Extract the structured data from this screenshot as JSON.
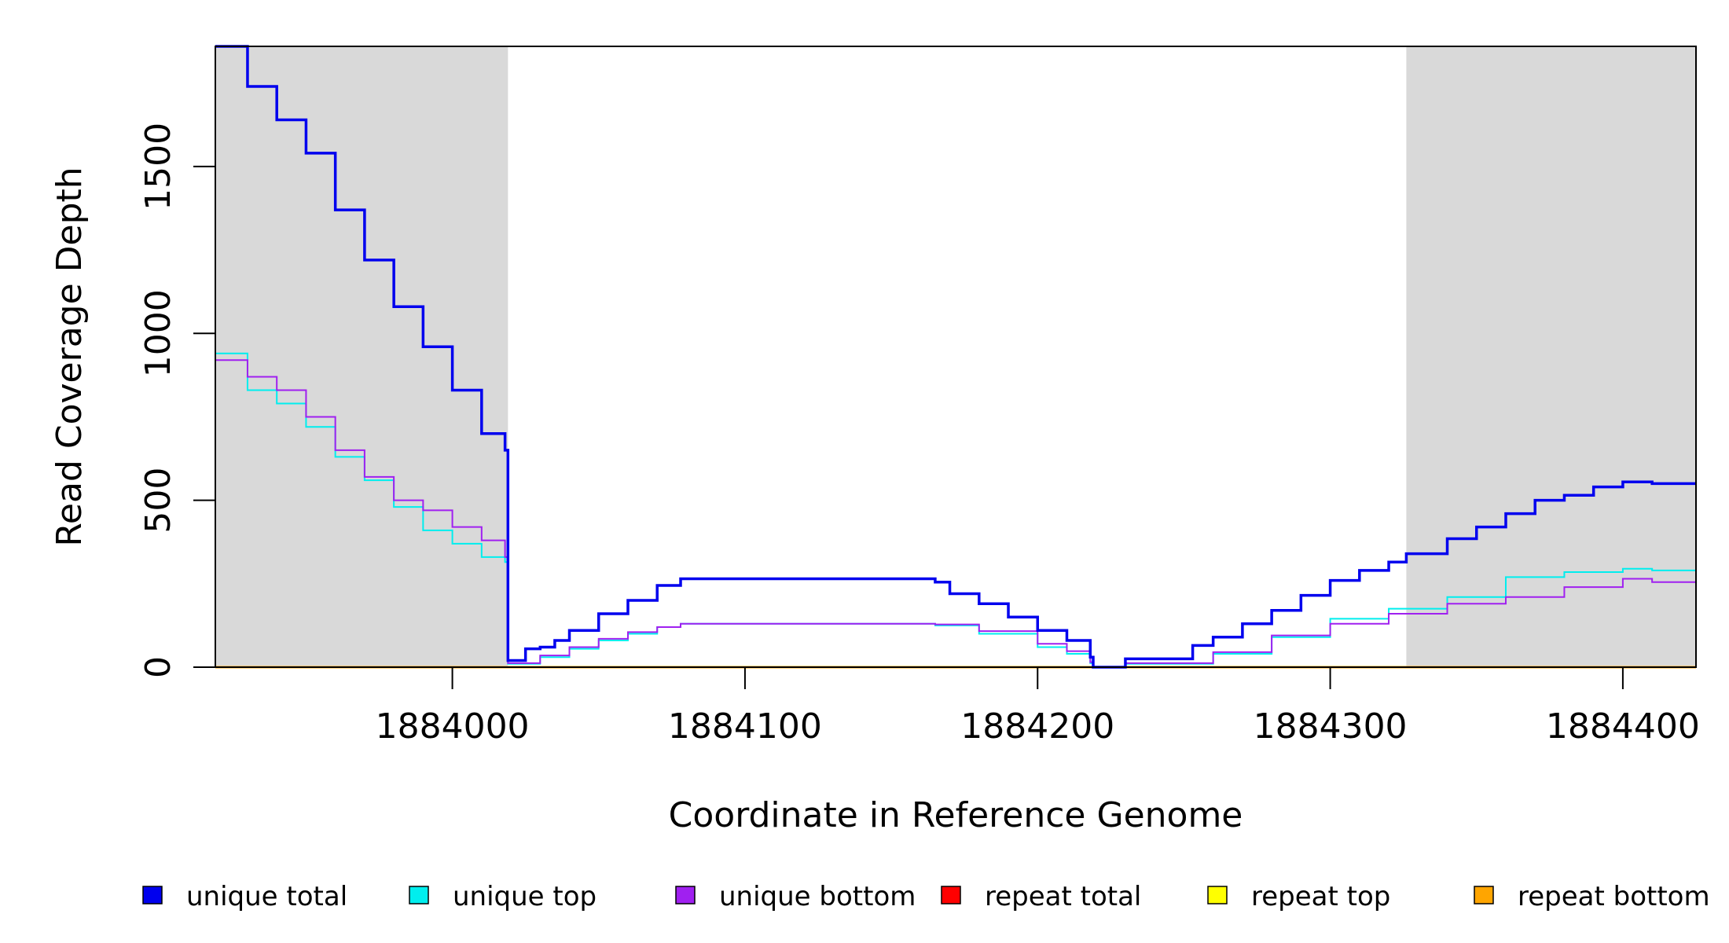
{
  "chart_data": {
    "type": "line",
    "xlabel": "Coordinate in Reference Genome",
    "ylabel": "Read Coverage Depth",
    "xlim": [
      1883919,
      1884425
    ],
    "ylim": [
      0,
      1860
    ],
    "xticks": [
      1884000,
      1884100,
      1884200,
      1884300,
      1884400
    ],
    "xtick_labels": [
      "1884000",
      "1884100",
      "1884200",
      "1884300",
      "1884400"
    ],
    "yticks": [
      0,
      500,
      1000,
      1500
    ],
    "ytick_labels": [
      "0",
      "500",
      "1000",
      "1500"
    ],
    "grid": false,
    "legend_position": "bottom",
    "shaded_regions": [
      {
        "x0": 1883919,
        "x1": 1884019,
        "color": "#d9d9d9"
      },
      {
        "x0": 1884326,
        "x1": 1884425,
        "color": "#d9d9d9"
      }
    ],
    "series": [
      {
        "name": "unique total",
        "color": "#0000ee",
        "x": [
          1883919,
          1883930,
          1883940,
          1883950,
          1883960,
          1883970,
          1883980,
          1883990,
          1884000,
          1884010,
          1884018,
          1884019,
          1884025,
          1884030,
          1884034,
          1884035,
          1884040,
          1884050,
          1884060,
          1884070,
          1884078,
          1884100,
          1884130,
          1884160,
          1884165,
          1884170,
          1884180,
          1884190,
          1884200,
          1884210,
          1884218,
          1884219,
          1884229,
          1884230,
          1884240,
          1884252,
          1884253,
          1884260,
          1884270,
          1884280,
          1884290,
          1884300,
          1884310,
          1884320,
          1884326,
          1884340,
          1884350,
          1884360,
          1884370,
          1884380,
          1884390,
          1884400,
          1884410,
          1884425
        ],
        "y": [
          1860,
          1740,
          1640,
          1540,
          1370,
          1220,
          1080,
          960,
          830,
          700,
          650,
          20,
          55,
          60,
          60,
          80,
          110,
          160,
          200,
          245,
          265,
          265,
          265,
          265,
          255,
          220,
          190,
          150,
          110,
          80,
          30,
          0,
          0,
          25,
          25,
          25,
          65,
          90,
          130,
          170,
          215,
          260,
          290,
          315,
          340,
          385,
          420,
          460,
          500,
          515,
          540,
          555,
          550,
          550
        ]
      },
      {
        "name": "unique top",
        "color": "#00eeee",
        "x": [
          1883919,
          1883930,
          1883940,
          1883950,
          1883960,
          1883970,
          1883980,
          1883990,
          1884000,
          1884010,
          1884018,
          1884019,
          1884030,
          1884040,
          1884050,
          1884060,
          1884070,
          1884078,
          1884100,
          1884160,
          1884165,
          1884180,
          1884200,
          1884210,
          1884218,
          1884219,
          1884229,
          1884230,
          1884252,
          1884260,
          1884280,
          1884300,
          1884320,
          1884340,
          1884360,
          1884380,
          1884400,
          1884410,
          1884425
        ],
        "y": [
          940,
          830,
          790,
          720,
          630,
          560,
          480,
          410,
          370,
          330,
          315,
          10,
          30,
          55,
          80,
          100,
          120,
          130,
          130,
          130,
          125,
          100,
          60,
          40,
          12,
          0,
          0,
          10,
          10,
          40,
          90,
          145,
          175,
          210,
          270,
          285,
          295,
          290,
          295
        ]
      },
      {
        "name": "unique bottom",
        "color": "#a020f0",
        "x": [
          1883919,
          1883930,
          1883940,
          1883950,
          1883960,
          1883970,
          1883980,
          1883990,
          1884000,
          1884010,
          1884018,
          1884019,
          1884030,
          1884040,
          1884050,
          1884060,
          1884070,
          1884078,
          1884100,
          1884160,
          1884165,
          1884180,
          1884200,
          1884210,
          1884218,
          1884219,
          1884229,
          1884230,
          1884252,
          1884260,
          1884280,
          1884300,
          1884320,
          1884340,
          1884360,
          1884380,
          1884400,
          1884410,
          1884425
        ],
        "y": [
          920,
          870,
          830,
          750,
          650,
          570,
          500,
          470,
          420,
          380,
          330,
          12,
          35,
          60,
          85,
          105,
          120,
          130,
          130,
          130,
          128,
          108,
          70,
          48,
          15,
          0,
          0,
          12,
          12,
          45,
          95,
          130,
          160,
          190,
          210,
          240,
          265,
          255,
          255
        ]
      },
      {
        "name": "repeat total",
        "color": "#ff0000",
        "x": [
          1883919,
          1884425
        ],
        "y": [
          0,
          0
        ]
      },
      {
        "name": "repeat top",
        "color": "#ffff00",
        "x": [
          1883919,
          1884425
        ],
        "y": [
          0,
          0
        ]
      },
      {
        "name": "repeat bottom",
        "color": "#ffa500",
        "x": [
          1883919,
          1884425
        ],
        "y": [
          0,
          0
        ]
      }
    ]
  }
}
